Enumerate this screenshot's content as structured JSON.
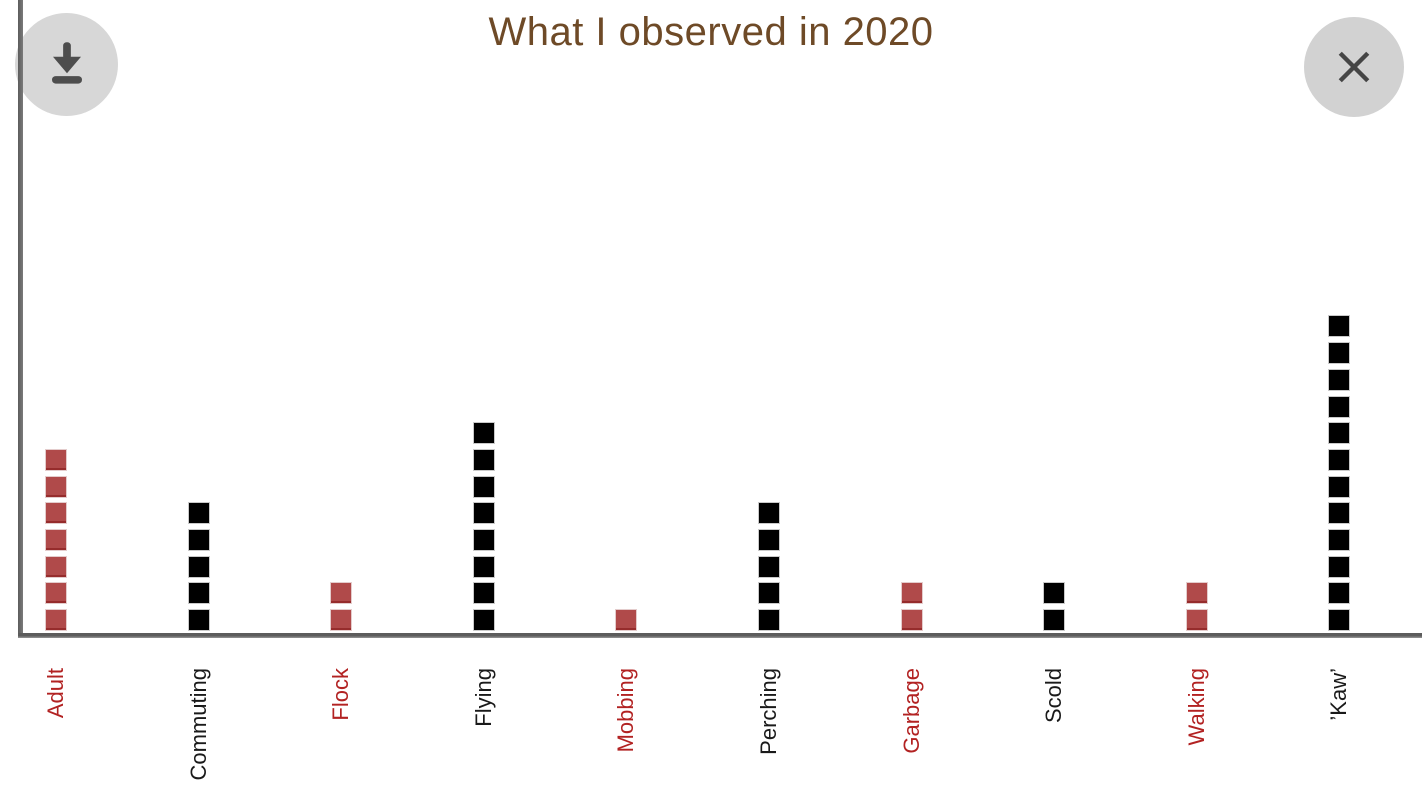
{
  "header": {
    "title": "What I observed in 2020",
    "title_color": "#6e4a27"
  },
  "toolbar": {
    "download_icon": "download-arrow-to-bar",
    "close_icon": "x-cross"
  },
  "chart_data": {
    "type": "bar",
    "subtype": "unit-square waffle columns",
    "title": "What I observed in 2020",
    "categories": [
      "Adult",
      "Commuting",
      "Flock",
      "Flying",
      "Mobbing",
      "Perching",
      "Garbage",
      "Scold",
      "Walking",
      "’Kaw’"
    ],
    "values": [
      7,
      5,
      2,
      8,
      1,
      5,
      2,
      2,
      2,
      12
    ],
    "colors": [
      "red",
      "black",
      "red",
      "black",
      "red",
      "black",
      "red",
      "black",
      "red",
      "black"
    ],
    "unit_per_square": 1,
    "ylim": [
      0,
      12
    ],
    "xlabel": "",
    "ylabel": "",
    "grid": false,
    "legend": false,
    "square_fill": {
      "red": "#b04a4a",
      "black": "#000000"
    },
    "label_color": {
      "red": "#b22222",
      "black": "#1a1a1a"
    },
    "axis_color": "#666666"
  }
}
